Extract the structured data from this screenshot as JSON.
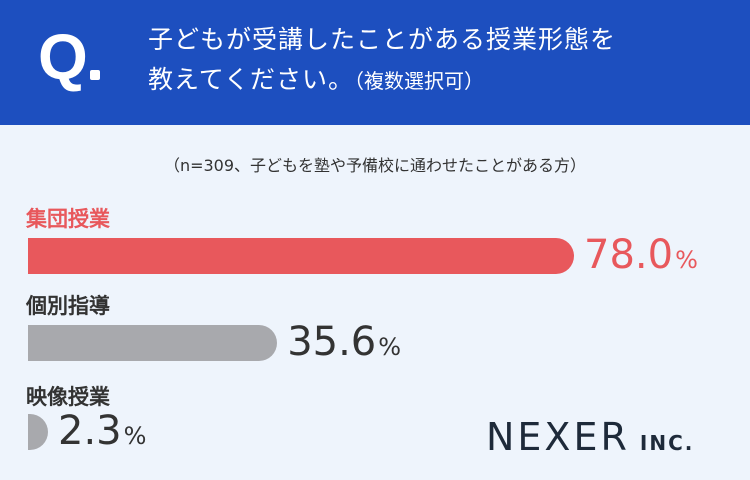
{
  "header": {
    "q_mark": "Q",
    "question_line1": "子どもが受講したことがある授業形態を",
    "question_line2": "教えてください。",
    "question_note": "（複数選択可）"
  },
  "sample_note": "（n=309、子どもを塾や予備校に通わせたことがある方）",
  "logo": {
    "main": "NEXER",
    "suffix": "INC."
  },
  "colors": {
    "header_bg": "#1d4fbf",
    "highlight": "#e8585c",
    "bar_default": "#a8a9ad",
    "text": "#333333"
  },
  "chart_data": {
    "type": "bar",
    "orientation": "horizontal",
    "categories": [
      "集団授業",
      "個別指導",
      "映像授業"
    ],
    "values": [
      78.0,
      35.6,
      2.3
    ],
    "value_labels": [
      "78.0",
      "35.6",
      "2.3"
    ],
    "unit": "%",
    "highlight_index": 0,
    "xlim": [
      0,
      100
    ]
  }
}
